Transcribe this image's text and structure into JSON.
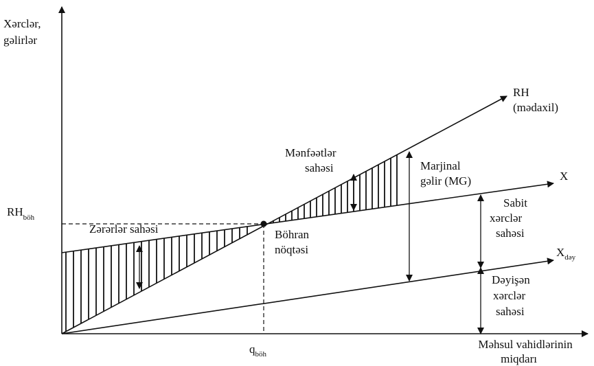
{
  "diagram": {
    "y_axis_label": [
      "Xərclər,",
      "gəlirlər"
    ],
    "x_axis_label": [
      "Məhsul vahidlərinin",
      "miqdarı"
    ],
    "rh_label": "RH",
    "rh_sub": "(mədaxil)",
    "x_label": "X",
    "xdey_main": "X",
    "xdey_sub": "dəy",
    "rh_boh_main": "RH",
    "rh_boh_sub": "böh",
    "q_boh_main": "q",
    "q_boh_sub": "böh",
    "loss_area": "Zərərlər sahəsi",
    "profit_area": [
      "Mənfəətlər",
      "sahəsi"
    ],
    "breakeven": [
      "Böhran",
      "nöqtəsi"
    ],
    "marginal": [
      "Marjinal",
      "gəlir (MG)"
    ],
    "fixed": [
      "Sabit",
      "xərclər",
      "sahəsi"
    ],
    "variable": [
      "Dəyişən",
      "xərclər",
      "sahəsi"
    ],
    "colors": {
      "ink": "#111111",
      "background": "#ffffff"
    }
  }
}
